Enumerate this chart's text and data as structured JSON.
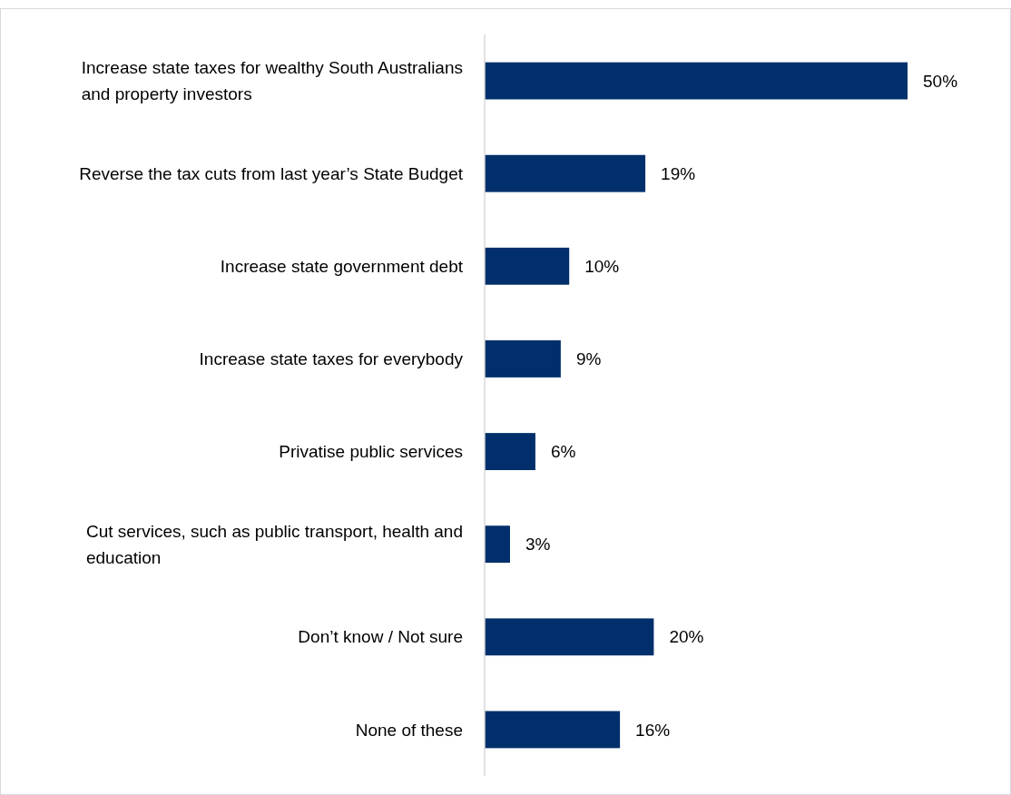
{
  "chart_data": {
    "type": "bar",
    "orientation": "horizontal",
    "categories": [
      "Increase state taxes for wealthy South Australians and property investors",
      "Reverse the tax cuts from last year’s State Budget",
      "Increase state government debt",
      "Increase state taxes for everybody",
      "Privatise public services",
      "Cut services, such as public transport, health and education",
      "Don’t know / Not sure",
      "None of these"
    ],
    "values": [
      50,
      19,
      10,
      9,
      6,
      3,
      20,
      16
    ],
    "value_labels": [
      "50%",
      "19%",
      "10%",
      "9%",
      "6%",
      "3%",
      "20%",
      "16%"
    ],
    "color": "#002f6c"
  }
}
